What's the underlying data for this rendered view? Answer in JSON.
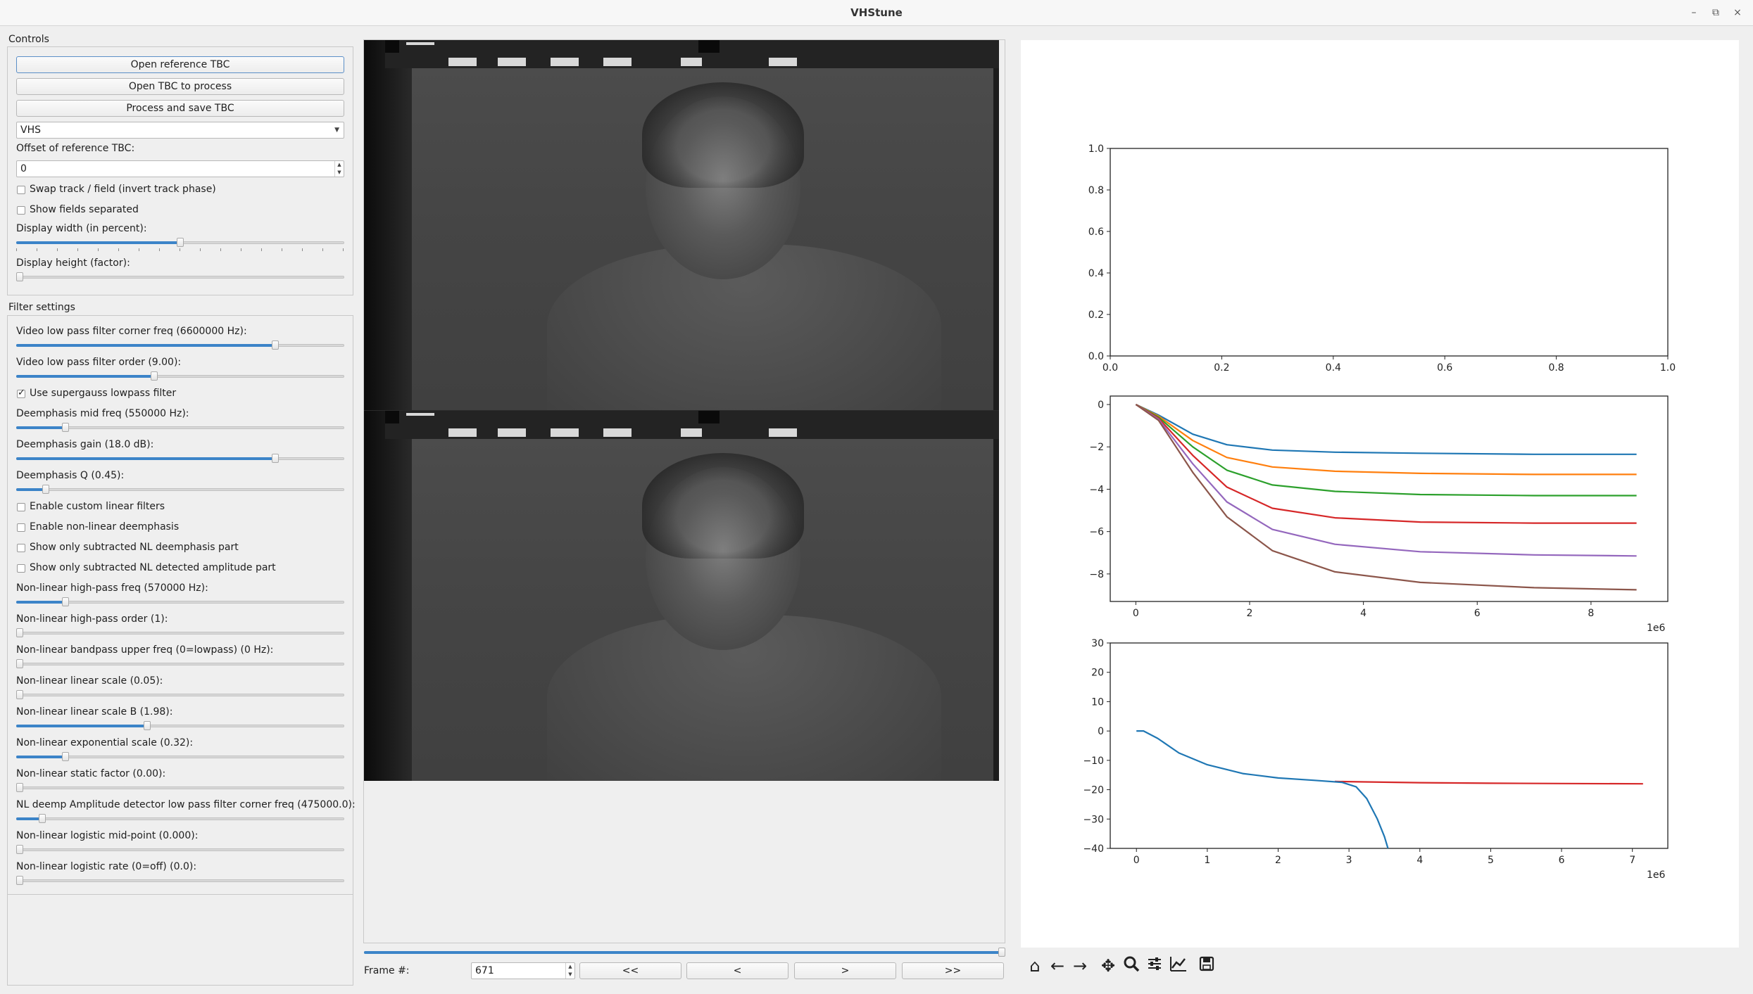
{
  "window": {
    "title": "VHStune",
    "controls": [
      "–",
      "⧉",
      "×"
    ]
  },
  "controls": {
    "title": "Controls",
    "open_ref": "Open reference TBC",
    "open_tbc": "Open TBC to process",
    "process": "Process and save TBC",
    "format": "VHS",
    "offset_label": "Offset of reference TBC:",
    "offset_value": "0",
    "swap_label": "Swap track / field (invert track phase)",
    "swap_checked": false,
    "fields_label": "Show fields separated",
    "fields_checked": false,
    "width_label": "Display width (in percent):",
    "width_value": 0.5,
    "height_label": "Display height (factor):",
    "height_value": 0.0
  },
  "filters": {
    "title": "Filter settings",
    "rows": [
      {
        "type": "slider",
        "label": "Video low pass filter corner freq (6600000 Hz):",
        "value": 0.79
      },
      {
        "type": "slider",
        "label": "Video low pass filter order (9.00):",
        "value": 0.42
      },
      {
        "type": "check",
        "label": "Use supergauss lowpass filter",
        "checked": true
      },
      {
        "type": "slider",
        "label": "Deemphasis mid freq (550000 Hz):",
        "value": 0.15
      },
      {
        "type": "slider",
        "label": "Deemphasis gain (18.0 dB):",
        "value": 0.79
      },
      {
        "type": "slider",
        "label": "Deemphasis Q (0.45):",
        "value": 0.09
      },
      {
        "type": "check",
        "label": "Enable custom linear filters",
        "checked": false
      },
      {
        "type": "check",
        "label": "Enable non-linear deemphasis",
        "checked": false
      },
      {
        "type": "check",
        "label": "Show only subtracted NL deemphasis part",
        "checked": false
      },
      {
        "type": "check",
        "label": "Show only subtracted NL detected amplitude part",
        "checked": false
      },
      {
        "type": "slider",
        "label": "Non-linear high-pass freq (570000 Hz):",
        "value": 0.15
      },
      {
        "type": "slider",
        "label": "Non-linear high-pass order (1):",
        "value": 0.0
      },
      {
        "type": "slider",
        "label": "Non-linear bandpass upper freq (0=lowpass) (0 Hz):",
        "value": 0.0
      },
      {
        "type": "slider",
        "label": "Non-linear linear scale (0.05):",
        "value": 0.0
      },
      {
        "type": "slider",
        "label": "Non-linear linear scale B (1.98):",
        "value": 0.4
      },
      {
        "type": "slider",
        "label": "Non-linear exponential scale (0.32):",
        "value": 0.15
      },
      {
        "type": "slider",
        "label": "Non-linear static factor (0.00):",
        "value": 0.0
      },
      {
        "type": "slider",
        "label": "NL deemp Amplitude detector low pass filter corner freq (475000.0):",
        "value": 0.08
      },
      {
        "type": "slider",
        "label": "Non-linear logistic mid-point (0.000):",
        "value": 0.0
      },
      {
        "type": "slider",
        "label": "Non-linear logistic rate (0=off) (0.0):",
        "value": 0.0
      }
    ]
  },
  "frame": {
    "label": "Frame #:",
    "value": "671",
    "progress": 1.0,
    "buttons": [
      "<<",
      "<",
      ">",
      ">>"
    ]
  },
  "toolbar": [
    "home-icon",
    "back-icon",
    "forward-icon",
    "pan-icon",
    "zoom-icon",
    "configure-subplots-icon",
    "edit-axis-icon",
    "save-icon"
  ],
  "chart_data": [
    {
      "type": "line",
      "x_ticks": [
        "0.0",
        "0.2",
        "0.4",
        "0.6",
        "0.8",
        "1.0"
      ],
      "y_ticks": [
        "0.0",
        "0.2",
        "0.4",
        "0.6",
        "0.8",
        "1.0"
      ],
      "xlim": [
        0,
        1
      ],
      "ylim": [
        0,
        1
      ],
      "series": []
    },
    {
      "type": "line",
      "x_ticks": [
        "0",
        "2",
        "4",
        "6",
        "8"
      ],
      "y_ticks": [
        "0",
        "−2",
        "−4",
        "−6",
        "−8"
      ],
      "offset_text": "1e6",
      "xlim": [
        -0.45,
        9.35
      ],
      "ylim": [
        -9.3,
        0.4
      ],
      "series": [
        {
          "color": "#1f77b4",
          "x": [
            0,
            0.4,
            1.0,
            1.6,
            2.4,
            3.5,
            5,
            7,
            8.8
          ],
          "y": [
            0,
            -0.5,
            -1.4,
            -1.9,
            -2.15,
            -2.25,
            -2.3,
            -2.35,
            -2.35
          ]
        },
        {
          "color": "#ff7f0e",
          "x": [
            0,
            0.4,
            1.0,
            1.6,
            2.4,
            3.5,
            5,
            7,
            8.8
          ],
          "y": [
            0,
            -0.55,
            -1.7,
            -2.5,
            -2.95,
            -3.15,
            -3.25,
            -3.3,
            -3.3
          ]
        },
        {
          "color": "#2ca02c",
          "x": [
            0,
            0.4,
            1.0,
            1.6,
            2.4,
            3.5,
            5,
            7,
            8.8
          ],
          "y": [
            0,
            -0.6,
            -2.0,
            -3.1,
            -3.8,
            -4.1,
            -4.25,
            -4.3,
            -4.3
          ]
        },
        {
          "color": "#d62728",
          "x": [
            0,
            0.4,
            1.0,
            1.6,
            2.4,
            3.5,
            5,
            7,
            8.8
          ],
          "y": [
            0,
            -0.65,
            -2.4,
            -3.9,
            -4.9,
            -5.35,
            -5.55,
            -5.6,
            -5.6
          ]
        },
        {
          "color": "#9467bd",
          "x": [
            0,
            0.4,
            1.0,
            1.6,
            2.4,
            3.5,
            5,
            7,
            8.8
          ],
          "y": [
            0,
            -0.7,
            -2.8,
            -4.6,
            -5.9,
            -6.6,
            -6.95,
            -7.1,
            -7.15
          ]
        },
        {
          "color": "#8c564b",
          "x": [
            0,
            0.4,
            1.0,
            1.6,
            2.4,
            3.5,
            5,
            7,
            8.8
          ],
          "y": [
            0,
            -0.75,
            -3.2,
            -5.3,
            -6.9,
            -7.9,
            -8.4,
            -8.65,
            -8.75
          ]
        }
      ]
    },
    {
      "type": "line",
      "x_ticks": [
        "0",
        "1",
        "2",
        "3",
        "4",
        "5",
        "6",
        "7"
      ],
      "y_ticks": [
        "30",
        "20",
        "10",
        "0",
        "−10",
        "−20",
        "−30",
        "−40"
      ],
      "offset_text": "1e6",
      "xlim": [
        -0.37,
        7.5
      ],
      "ylim": [
        -40,
        30
      ],
      "series": [
        {
          "color": "#d62728",
          "x": [
            2.8,
            4,
            5,
            6,
            7.15
          ],
          "y": [
            -17.2,
            -17.6,
            -17.8,
            -17.9,
            -18.0
          ]
        },
        {
          "color": "#1f77b4",
          "x": [
            0,
            0.1,
            0.3,
            0.6,
            1.0,
            1.5,
            2.0,
            2.5,
            2.9,
            3.1,
            3.25,
            3.4,
            3.5,
            3.55
          ],
          "y": [
            0,
            0,
            -2.5,
            -7.5,
            -11.5,
            -14.5,
            -16.0,
            -16.8,
            -17.5,
            -19,
            -23,
            -30,
            -36,
            -40
          ]
        }
      ]
    }
  ]
}
